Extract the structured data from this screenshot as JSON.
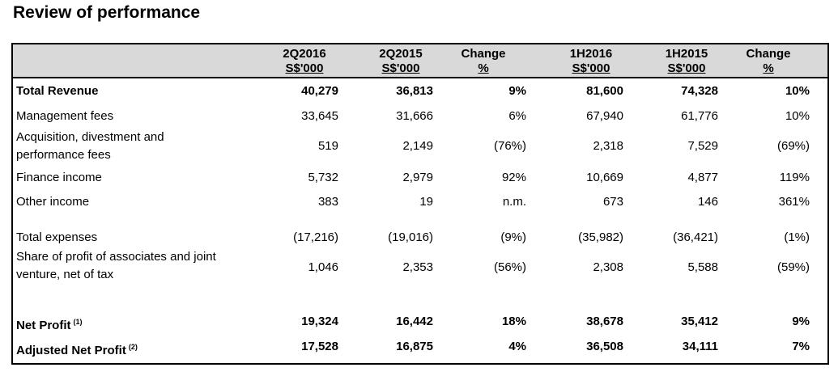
{
  "title": "Review of performance",
  "headers": [
    {
      "line1": "2Q2016",
      "line2": "S$'000"
    },
    {
      "line1": "2Q2015",
      "line2": "S$'000"
    },
    {
      "line1": "Change",
      "line2": "%"
    },
    {
      "line1": "1H2016",
      "line2": "S$'000"
    },
    {
      "line1": "1H2015",
      "line2": "S$'000"
    },
    {
      "line1": "Change",
      "line2": "%"
    }
  ],
  "rows": [
    {
      "label": "Total Revenue",
      "label2": "",
      "note": "",
      "bold": true,
      "values": [
        "40,279",
        "36,813",
        "9%",
        "81,600",
        "74,328",
        "10%"
      ]
    },
    {
      "label": "Management fees",
      "label2": "",
      "note": "",
      "bold": false,
      "values": [
        "33,645",
        "31,666",
        "6%",
        "67,940",
        "61,776",
        "10%"
      ]
    },
    {
      "label": "Acquisition, divestment and",
      "label2": "performance fees",
      "note": "",
      "bold": false,
      "values": [
        "519",
        "2,149",
        "(76%)",
        "2,318",
        "7,529",
        "(69%)"
      ]
    },
    {
      "label": "Finance income",
      "label2": "",
      "note": "",
      "bold": false,
      "values": [
        "5,732",
        "2,979",
        "92%",
        "10,669",
        "4,877",
        "119%"
      ]
    },
    {
      "label": "Other income",
      "label2": "",
      "note": "",
      "bold": false,
      "values": [
        "383",
        "19",
        "n.m.",
        "673",
        "146",
        "361%"
      ]
    },
    {
      "label": "Total expenses",
      "label2": "",
      "note": "",
      "bold": false,
      "values": [
        "(17,216)",
        "(19,016)",
        "(9%)",
        "(35,982)",
        "(36,421)",
        "(1%)"
      ]
    },
    {
      "label": "Share of profit of associates and joint",
      "label2": "venture, net of tax",
      "note": "",
      "bold": false,
      "values": [
        "1,046",
        "2,353",
        "(56%)",
        "2,308",
        "5,588",
        "(59%)"
      ]
    },
    {
      "label": "Net Profit",
      "label2": "",
      "note": "(1)",
      "bold": true,
      "values": [
        "19,324",
        "16,442",
        "18%",
        "38,678",
        "35,412",
        "9%"
      ]
    },
    {
      "label": "Adjusted Net Profit",
      "label2": "",
      "note": "(2)",
      "bold": true,
      "values": [
        "17,528",
        "16,875",
        "4%",
        "36,508",
        "34,111",
        "7%"
      ]
    }
  ]
}
